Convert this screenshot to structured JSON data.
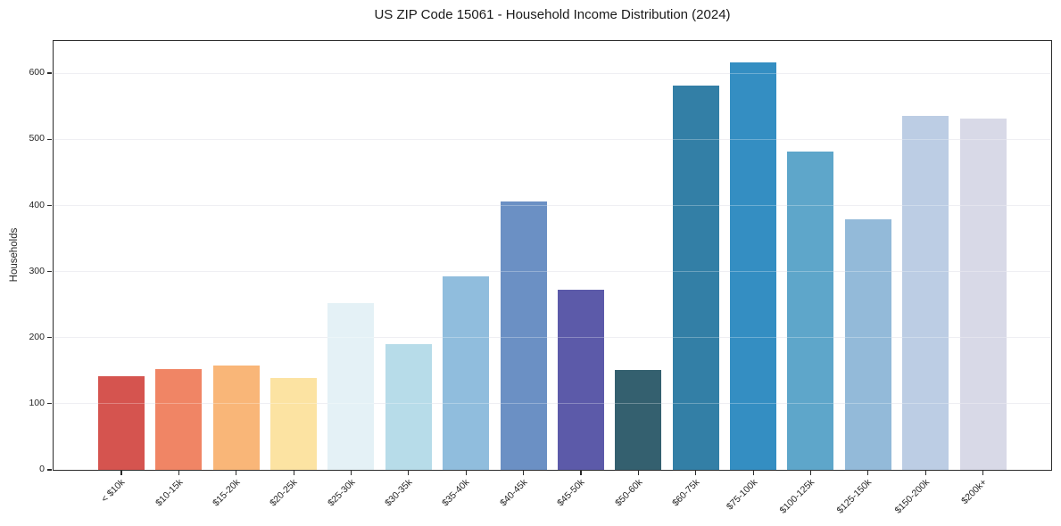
{
  "colors": {
    "background": "#ffffff",
    "grid": "#e9e9ef",
    "spine": "#2b2b2b",
    "text": "#262626",
    "title_text": "#1a1a1a"
  },
  "chart_data": {
    "type": "bar",
    "title": "US ZIP Code 15061 - Household Income Distribution (2024)",
    "xlabel": "",
    "ylabel": "Households",
    "categories": [
      "< $10k",
      "$10-15k",
      "$15-20k",
      "$20-25k",
      "$25-30k",
      "$30-35k",
      "$35-40k",
      "$40-45k",
      "$45-50k",
      "$50-60k",
      "$60-75k",
      "$75-100k",
      "$100-125k",
      "$125-150k",
      "$150-200k",
      "$200k+"
    ],
    "values": [
      142,
      152,
      158,
      139,
      252,
      190,
      292,
      406,
      272,
      151,
      581,
      616,
      481,
      379,
      535,
      531
    ],
    "bar_colors": [
      "#d5544f",
      "#f08565",
      "#f9b678",
      "#fce3a2",
      "#e4f1f6",
      "#b7dce9",
      "#90bddd",
      "#6b90c4",
      "#5c5aa9",
      "#34606f",
      "#337fa6",
      "#348ec2",
      "#5ea6ca",
      "#93bad9",
      "#bccde4",
      "#d8d9e7"
    ],
    "yticks": [
      0,
      100,
      200,
      300,
      400,
      500,
      600
    ],
    "ylim": [
      0,
      648
    ],
    "grid": "horizontal",
    "legend_position": "none",
    "x_tick_rotation_deg": 45
  }
}
